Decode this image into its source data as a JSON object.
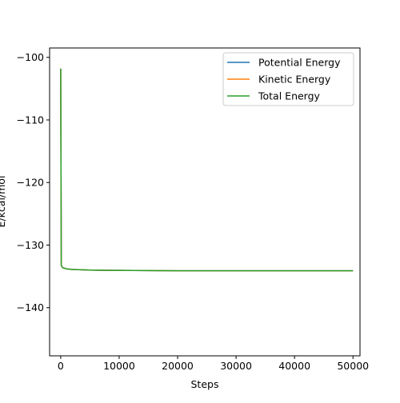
{
  "chart_data": {
    "type": "line",
    "x_label": "Steps",
    "y_label": "E/kcal/mol",
    "x": [
      0,
      100,
      300,
      1000,
      2000,
      5000,
      10000,
      20000,
      30000,
      40000,
      50000
    ],
    "series": [
      {
        "name": "Potential Energy",
        "color": "#1f77b4",
        "values": [
          -101.8,
          -133.2,
          -133.6,
          -133.8,
          -133.9,
          -134.0,
          -134.05,
          -134.1,
          -134.1,
          -134.1,
          -134.1
        ]
      },
      {
        "name": "Kinetic Energy",
        "color": "#ff7f0e",
        "values": [
          -101.8,
          -133.2,
          -133.6,
          -133.8,
          -133.9,
          -134.0,
          -134.05,
          -134.1,
          -134.1,
          -134.1,
          -134.1
        ]
      },
      {
        "name": "Total Energy",
        "color": "#2ca02c",
        "values": [
          -101.8,
          -133.2,
          -133.6,
          -133.8,
          -133.9,
          -134.0,
          -134.05,
          -134.1,
          -134.1,
          -134.1,
          -134.1
        ]
      }
    ],
    "xlim": [
      -1900,
      51200
    ],
    "xticks": [
      0,
      10000,
      20000,
      30000,
      40000,
      50000
    ],
    "ylim": [
      -147.7,
      -98.5
    ],
    "yticks": [
      {
        "value": -100,
        "label": "−100"
      },
      {
        "value": -110,
        "label": "−110"
      },
      {
        "value": -120,
        "label": "−120"
      },
      {
        "value": -130,
        "label": "−130"
      },
      {
        "value": -140,
        "label": "−140"
      }
    ],
    "legend": "upper right"
  }
}
